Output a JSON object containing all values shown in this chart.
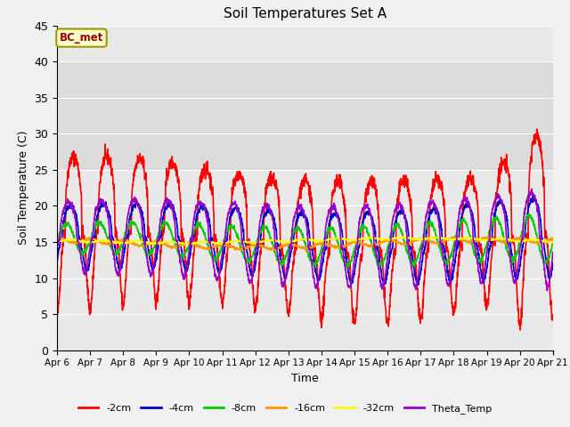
{
  "title": "Soil Temperatures Set A",
  "xlabel": "Time",
  "ylabel": "Soil Temperature (C)",
  "ylim": [
    0,
    45
  ],
  "yticks": [
    0,
    5,
    10,
    15,
    20,
    25,
    30,
    35,
    40,
    45
  ],
  "n_days": 15,
  "annotation_text": "BC_met",
  "annotation_bg": "#ffffcc",
  "annotation_border": "#999900",
  "series_colors": {
    "-2cm": "#ff0000",
    "-4cm": "#0000cc",
    "-8cm": "#00cc00",
    "-16cm": "#ff9900",
    "-32cm": "#ffff00",
    "Theta_Temp": "#9900cc"
  },
  "series_order": [
    "-2cm",
    "-4cm",
    "-8cm",
    "-16cm",
    "-32cm",
    "Theta_Temp"
  ],
  "bg_color": "#f0f0f0",
  "plot_bg_color": "#e8e8e8",
  "grid_color": "#ffffff",
  "axisbg_band_color": "#d8d8d8",
  "x_tick_labels": [
    "Apr 6",
    "Apr 7",
    "Apr 8",
    "Apr 9",
    "Apr 10",
    "Apr 11",
    "Apr 12",
    "Apr 13",
    "Apr 14",
    "Apr 15",
    "Apr 16",
    "Apr 17",
    "Apr 18",
    "Apr 19",
    "Apr 20",
    "Apr 21"
  ]
}
